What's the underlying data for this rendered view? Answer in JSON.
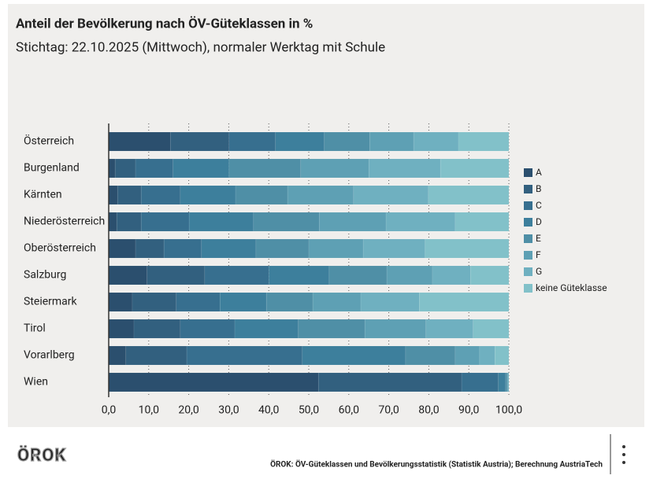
{
  "chart_data": {
    "type": "stacked-bar-horizontal",
    "title": "Anteil der Bevölkerung nach ÖV-Güteklassen in %",
    "subtitle": "Stichtag: 22.10.2025 (Mittwoch), normaler Werktag mit Schule",
    "categories": [
      "Österreich",
      "Burgenland",
      "Kärnten",
      "Niederösterreich",
      "Oberösterreich",
      "Salzburg",
      "Steiermark",
      "Tirol",
      "Vorarlberg",
      "Wien"
    ],
    "series": [
      {
        "name": "A",
        "color": "#2b4f6e",
        "values": [
          15.4,
          1.6,
          2.2,
          2.0,
          6.7,
          9.6,
          5.9,
          6.3,
          4.3,
          52.4
        ]
      },
      {
        "name": "B",
        "color": "#32607f",
        "values": [
          14.7,
          5.1,
          5.9,
          6.1,
          7.1,
          14.4,
          11.0,
          11.6,
          15.2,
          35.8
        ]
      },
      {
        "name": "C",
        "color": "#376f8f",
        "values": [
          11.6,
          9.4,
          9.8,
          12.0,
          9.4,
          16.0,
          10.9,
          13.6,
          28.9,
          9.2
        ]
      },
      {
        "name": "D",
        "color": "#3d7f9c",
        "values": [
          12.2,
          14.0,
          13.8,
          16.1,
          13.6,
          15.1,
          11.6,
          15.9,
          25.8,
          1.8
        ]
      },
      {
        "name": "E",
        "color": "#4f8fa6",
        "values": [
          11.3,
          17.9,
          13.0,
          16.4,
          13.2,
          14.4,
          11.6,
          16.6,
          12.4,
          0.4
        ]
      },
      {
        "name": "F",
        "color": "#5ea0b4",
        "values": [
          11.0,
          17.0,
          16.5,
          16.7,
          13.6,
          11.4,
          12.0,
          15.3,
          6.1,
          0.2
        ]
      },
      {
        "name": "G",
        "color": "#6fb0c0",
        "values": [
          11.2,
          17.9,
          18.7,
          17.3,
          15.5,
          9.5,
          14.6,
          11.8,
          3.8,
          0.2
        ]
      },
      {
        "name": "keine Güteklasse",
        "color": "#82c1c9",
        "values": [
          12.6,
          17.1,
          20.1,
          13.4,
          20.9,
          9.6,
          22.4,
          8.9,
          3.5,
          0.0
        ]
      }
    ],
    "xlim": [
      0,
      100
    ],
    "xticks": [
      {
        "value": 0,
        "label": "0,0"
      },
      {
        "value": 10,
        "label": "10,0"
      },
      {
        "value": 20,
        "label": "20,0"
      },
      {
        "value": 30,
        "label": "30,0"
      },
      {
        "value": 40,
        "label": "40,0"
      },
      {
        "value": 50,
        "label": "50,0"
      },
      {
        "value": 60,
        "label": "60,0"
      },
      {
        "value": 70,
        "label": "70,0"
      },
      {
        "value": 80,
        "label": "80,0"
      },
      {
        "value": 90,
        "label": "90,0"
      },
      {
        "value": 100,
        "label": "100,0"
      }
    ],
    "grid": true,
    "legend": "right"
  },
  "footer": {
    "logo": "ÖROK",
    "source": "ÖROK: ÖV-Güteklassen und Bevölkerungsstatistik (Statistik Austria); Berechnung AustriaTech"
  }
}
